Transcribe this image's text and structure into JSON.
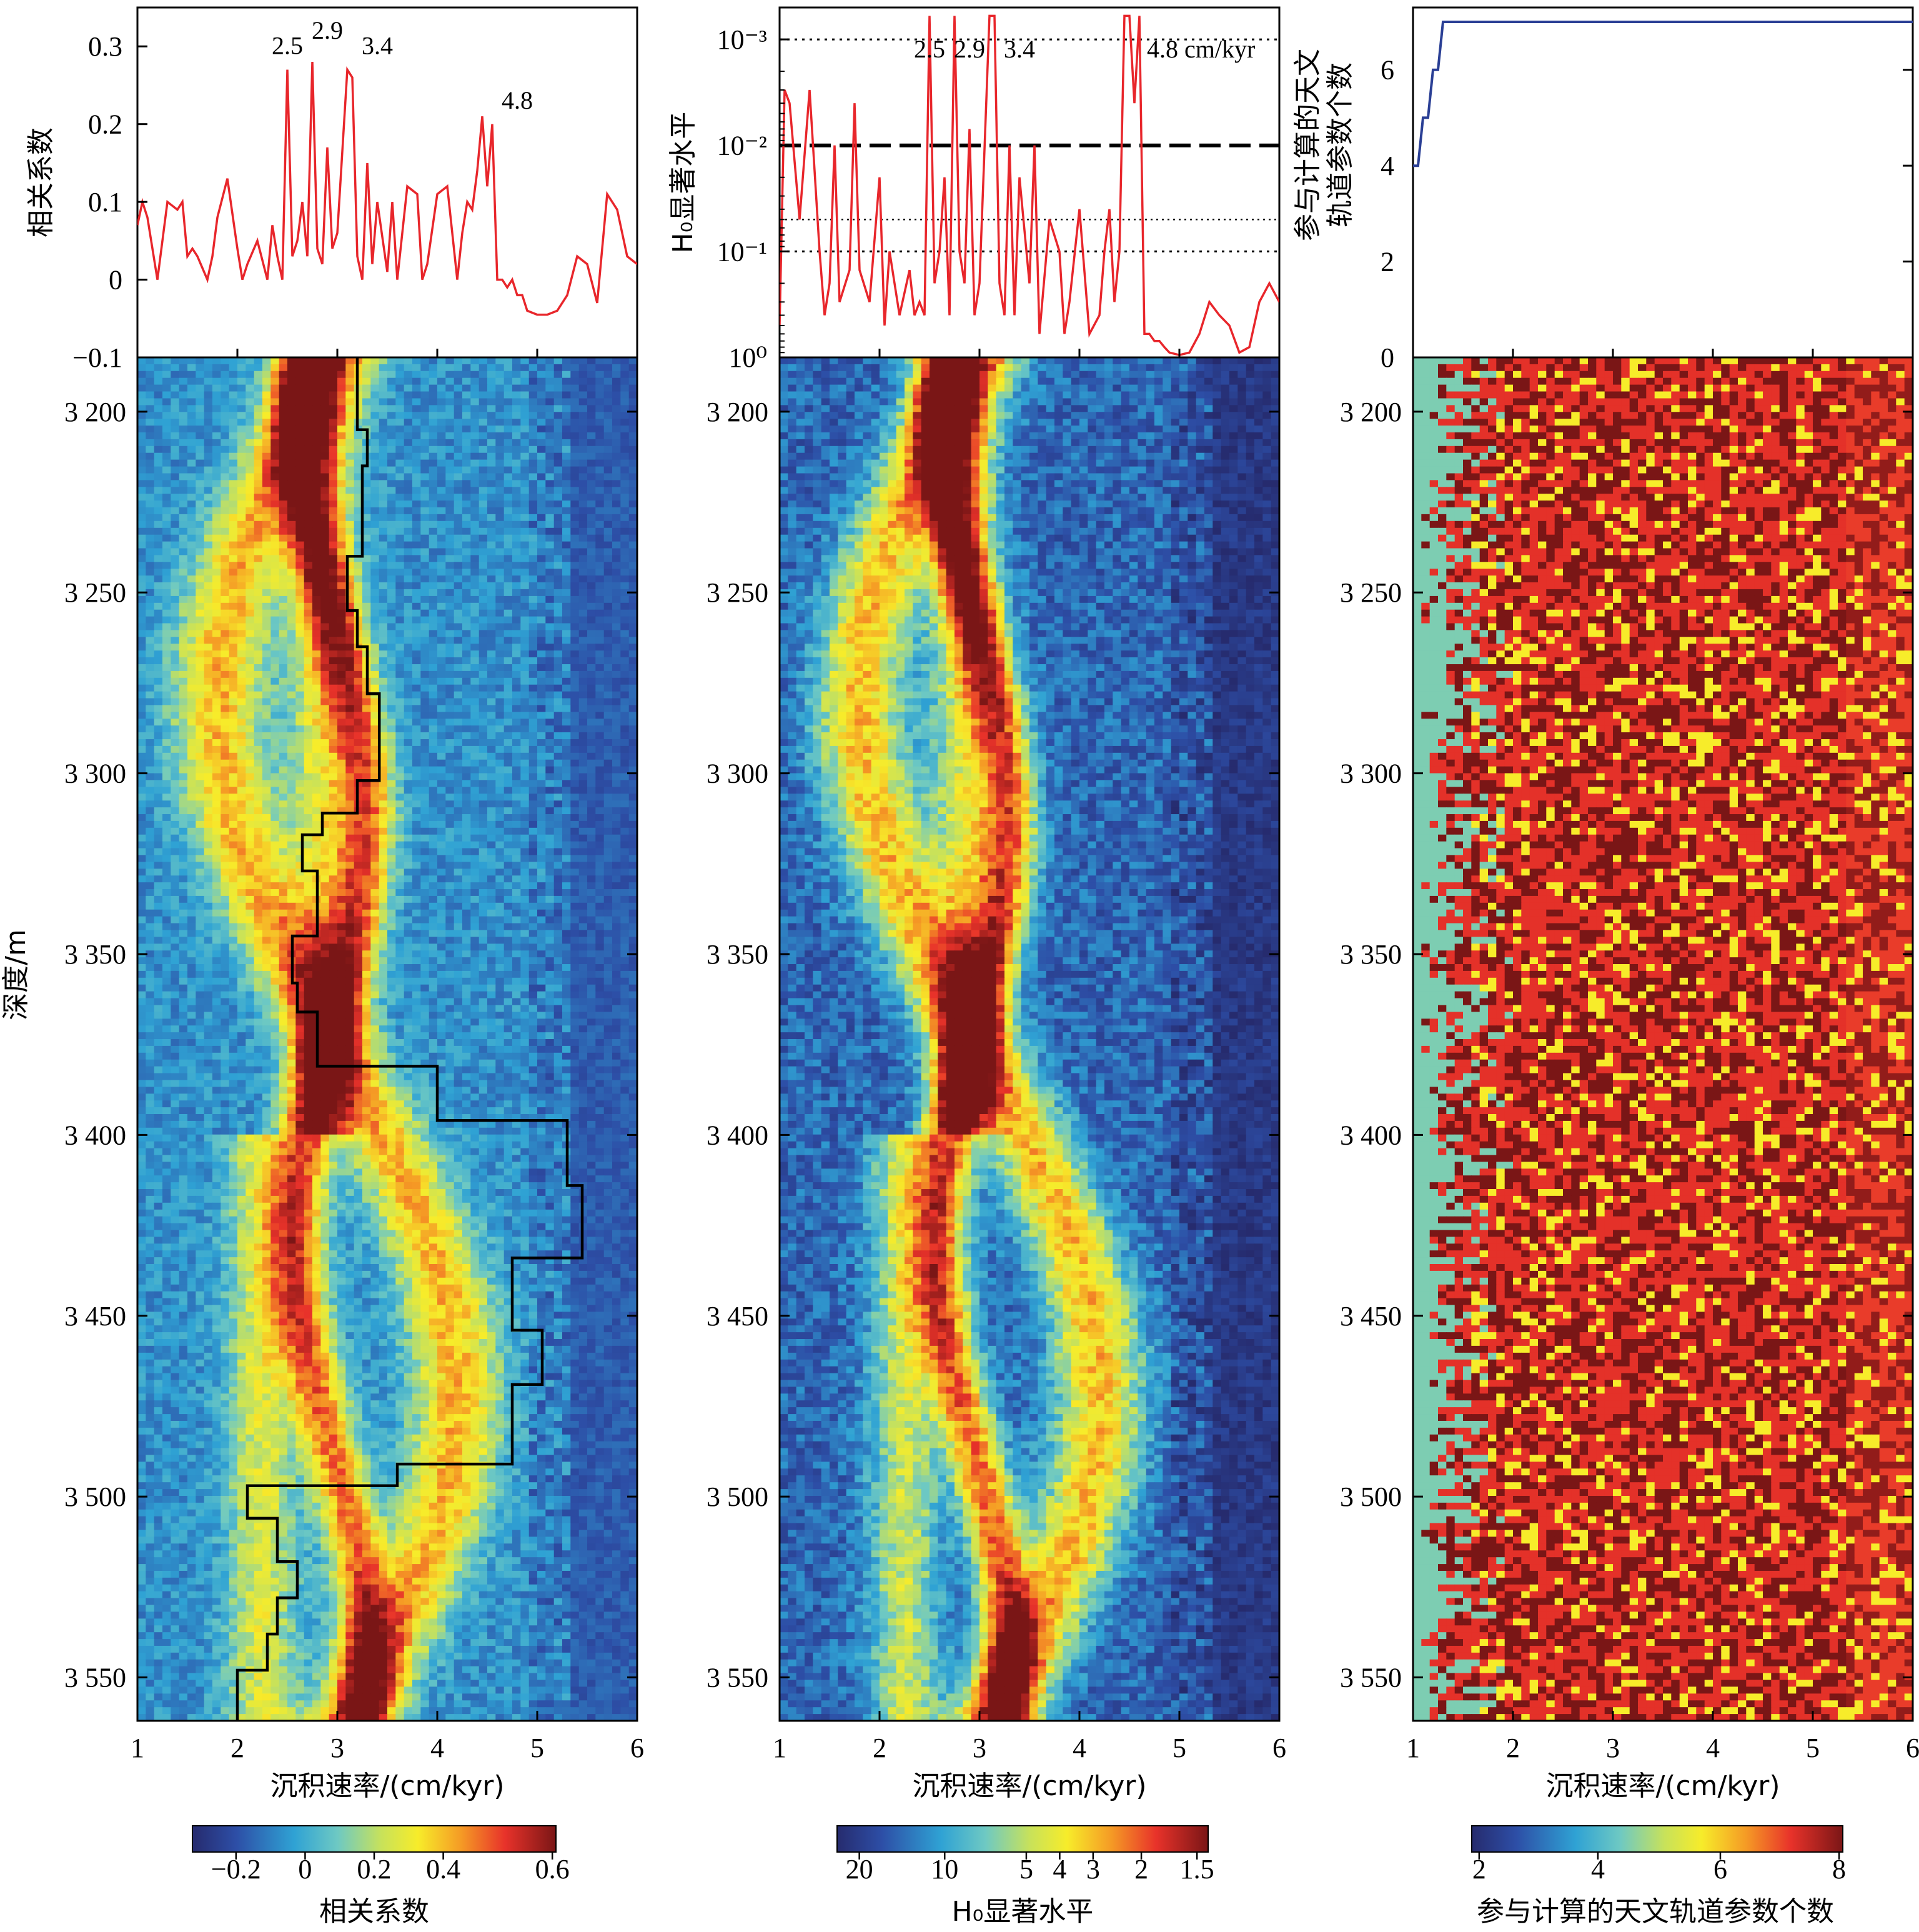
{
  "chart_data": [
    {
      "type": "line",
      "panel": "correlation",
      "ylabel": "相关系数",
      "ylim": [
        -0.1,
        0.35
      ],
      "yticks": [
        "−0.1",
        "0",
        "0.1",
        "0.2",
        "0.3"
      ],
      "xlim": [
        1,
        6
      ],
      "annotations": [
        {
          "text": "2.5",
          "x": 2.5,
          "y": 0.29
        },
        {
          "text": "2.9",
          "x": 2.9,
          "y": 0.31
        },
        {
          "text": "3.4",
          "x": 3.4,
          "y": 0.29
        },
        {
          "text": "4.8",
          "x": 4.8,
          "y": 0.22
        }
      ],
      "series": [
        {
          "color": "#e8262b",
          "x": [
            1.0,
            1.05,
            1.1,
            1.2,
            1.3,
            1.4,
            1.45,
            1.5,
            1.55,
            1.6,
            1.7,
            1.75,
            1.8,
            1.9,
            2.0,
            2.05,
            2.1,
            2.2,
            2.3,
            2.35,
            2.4,
            2.45,
            2.5,
            2.55,
            2.6,
            2.65,
            2.7,
            2.75,
            2.8,
            2.85,
            2.9,
            2.95,
            3.0,
            3.1,
            3.15,
            3.2,
            3.25,
            3.3,
            3.35,
            3.4,
            3.5,
            3.55,
            3.6,
            3.7,
            3.8,
            3.85,
            3.9,
            4.0,
            4.1,
            4.2,
            4.25,
            4.3,
            4.35,
            4.4,
            4.45,
            4.5,
            4.55,
            4.6,
            4.65,
            4.7,
            4.75,
            4.8,
            4.85,
            4.9,
            5.0,
            5.1,
            5.2,
            5.3,
            5.4,
            5.5,
            5.6,
            5.7,
            5.8,
            5.9,
            6.0
          ],
          "y": [
            0.07,
            0.1,
            0.08,
            0.0,
            0.1,
            0.09,
            0.1,
            0.03,
            0.04,
            0.03,
            0.0,
            0.03,
            0.08,
            0.13,
            0.04,
            0.0,
            0.02,
            0.05,
            0.0,
            0.07,
            0.03,
            0.0,
            0.27,
            0.03,
            0.05,
            0.1,
            0.03,
            0.28,
            0.04,
            0.02,
            0.17,
            0.04,
            0.06,
            0.27,
            0.26,
            0.03,
            0.0,
            0.15,
            0.02,
            0.1,
            0.01,
            0.1,
            0.0,
            0.12,
            0.11,
            0.0,
            0.02,
            0.11,
            0.12,
            0.0,
            0.06,
            0.1,
            0.09,
            0.14,
            0.21,
            0.12,
            0.2,
            0.0,
            0.0,
            -0.01,
            0.0,
            -0.02,
            -0.02,
            -0.04,
            -0.045,
            -0.045,
            -0.04,
            -0.02,
            0.03,
            0.02,
            -0.03,
            0.11,
            0.09,
            0.03,
            0.02
          ]
        }
      ]
    },
    {
      "type": "line",
      "panel": "h0-significance",
      "ylabel": "H₀显著水平",
      "yscale": "log-reversed",
      "ylim": [
        1,
        0.0005
      ],
      "yticks": [
        "10⁰",
        "10⁻¹",
        "10⁻²",
        "10⁻³"
      ],
      "xlim": [
        1,
        6
      ],
      "annotations": [
        {
          "text": "2.5",
          "x": 2.5
        },
        {
          "text": "2.9",
          "x": 2.9
        },
        {
          "text": "3.4",
          "x": 3.4
        },
        {
          "text": "4.8 cm/kyr",
          "x": 4.8
        }
      ],
      "reference_lines": [
        0.001,
        0.01,
        0.05,
        0.1
      ],
      "series": [
        {
          "color": "#e8262b",
          "x": [
            1.0,
            1.05,
            1.1,
            1.2,
            1.3,
            1.4,
            1.45,
            1.5,
            1.55,
            1.6,
            1.7,
            1.75,
            1.8,
            1.9,
            2.0,
            2.05,
            2.1,
            2.2,
            2.3,
            2.35,
            2.4,
            2.45,
            2.5,
            2.55,
            2.6,
            2.65,
            2.7,
            2.75,
            2.8,
            2.85,
            2.9,
            2.95,
            3.0,
            3.1,
            3.15,
            3.2,
            3.25,
            3.3,
            3.35,
            3.4,
            3.5,
            3.55,
            3.6,
            3.7,
            3.8,
            3.85,
            3.9,
            4.0,
            4.1,
            4.2,
            4.25,
            4.3,
            4.35,
            4.4,
            4.45,
            4.5,
            4.55,
            4.6,
            4.65,
            4.7,
            4.75,
            4.8,
            4.85,
            4.9,
            5.0,
            5.1,
            5.2,
            5.3,
            5.4,
            5.5,
            5.6,
            5.7,
            5.8,
            5.9,
            6.0
          ],
          "y": [
            0.5,
            0.003,
            0.004,
            0.05,
            0.003,
            0.1,
            0.4,
            0.2,
            0.01,
            0.3,
            0.15,
            0.004,
            0.15,
            0.3,
            0.02,
            0.5,
            0.1,
            0.4,
            0.15,
            0.4,
            0.3,
            0.4,
            0.0006,
            0.2,
            0.1,
            0.02,
            0.4,
            0.0006,
            0.1,
            0.2,
            0.007,
            0.4,
            0.2,
            0.0006,
            0.0006,
            0.2,
            0.4,
            0.01,
            0.4,
            0.02,
            0.2,
            0.01,
            0.6,
            0.05,
            0.1,
            0.6,
            0.3,
            0.04,
            0.6,
            0.4,
            0.1,
            0.04,
            0.3,
            0.1,
            0.0006,
            0.0006,
            0.004,
            0.0006,
            0.6,
            0.6,
            0.7,
            0.7,
            0.8,
            0.9,
            0.95,
            0.9,
            0.6,
            0.3,
            0.4,
            0.5,
            0.9,
            0.8,
            0.3,
            0.2,
            0.3
          ]
        }
      ]
    },
    {
      "type": "line",
      "panel": "parameter-count",
      "ylabel_lines": [
        "参与计算的天文",
        "轨道参数个数"
      ],
      "ylim": [
        0,
        7.3
      ],
      "yticks": [
        "0",
        "2",
        "4",
        "6"
      ],
      "xlim": [
        1,
        6
      ],
      "series": [
        {
          "color": "#2a3f95",
          "x": [
            1.0,
            1.05,
            1.1,
            1.15,
            1.2,
            1.25,
            1.3,
            1.35,
            6.0
          ],
          "y": [
            4,
            4,
            5,
            5,
            6,
            6,
            7,
            7,
            7
          ]
        }
      ]
    },
    {
      "type": "heatmap",
      "panel": "correlation-map",
      "ylabel": "深度/m",
      "xlabel": "沉积速率/(cm/kyr)",
      "xlim": [
        1,
        6
      ],
      "ylim": [
        3185,
        3562
      ],
      "xticks": [
        "1",
        "2",
        "3",
        "4",
        "5",
        "6"
      ],
      "yticks": [
        "3 200",
        "3 250",
        "3 300",
        "3 350",
        "3 400",
        "3 450",
        "3 500",
        "3 550"
      ],
      "colorbar": {
        "label": "相关系数",
        "ticks": [
          "−0.2",
          "0",
          "0.2",
          "0.4",
          "0.6"
        ]
      },
      "ridges": [
        [
          2.25,
          2.85
        ],
        [
          2.6,
          3.3
        ],
        [
          1.8,
          4.2
        ]
      ],
      "optimal_path": {
        "color": "#000000",
        "depth": [
          3185,
          3205,
          3205,
          3215,
          3215,
          3240,
          3240,
          3255,
          3255,
          3265,
          3265,
          3278,
          3278,
          3302,
          3302,
          3311,
          3311,
          3317,
          3317,
          3327,
          3327,
          3345,
          3345,
          3358,
          3358,
          3366,
          3366,
          3381,
          3381,
          3396,
          3396,
          3414,
          3414,
          3434,
          3434,
          3454,
          3454,
          3469,
          3469,
          3491,
          3491,
          3497,
          3497,
          3506,
          3506,
          3518,
          3518,
          3528,
          3528,
          3538,
          3538,
          3548,
          3548,
          3562
        ],
        "rate": [
          3.2,
          3.2,
          3.3,
          3.3,
          3.25,
          3.25,
          3.1,
          3.1,
          3.2,
          3.2,
          3.3,
          3.3,
          3.42,
          3.42,
          3.2,
          3.2,
          2.85,
          2.85,
          2.65,
          2.65,
          2.8,
          2.8,
          2.55,
          2.55,
          2.6,
          2.6,
          2.8,
          2.8,
          4.0,
          4.0,
          5.3,
          5.3,
          5.45,
          5.45,
          4.75,
          4.75,
          5.05,
          5.05,
          4.75,
          4.75,
          3.6,
          3.6,
          2.1,
          2.1,
          2.4,
          2.4,
          2.6,
          2.6,
          2.4,
          2.4,
          2.3,
          2.3,
          2.0,
          2.0
        ]
      }
    },
    {
      "type": "heatmap",
      "panel": "h0-map",
      "xlabel": "沉积速率/(cm/kyr)",
      "xlim": [
        1,
        6
      ],
      "ylim": [
        3185,
        3562
      ],
      "xticks": [
        "1",
        "2",
        "3",
        "4",
        "5",
        "6"
      ],
      "yticks": [
        "3 200",
        "3 250",
        "3 300",
        "3 350",
        "3 400",
        "3 450",
        "3 500",
        "3 550"
      ],
      "colorbar": {
        "label": "H₀显著水平",
        "ticks": [
          "20",
          "10",
          "5",
          "4",
          "3",
          "2",
          "1.5"
        ]
      },
      "ridges": [
        [
          2.25,
          2.85
        ],
        [
          2.6,
          3.3
        ],
        [
          1.8,
          4.2
        ]
      ]
    },
    {
      "type": "heatmap",
      "panel": "parameter-count-map",
      "xlabel": "沉积速率/(cm/kyr)",
      "xlim": [
        1,
        6
      ],
      "ylim": [
        3185,
        3562
      ],
      "xticks": [
        "1",
        "2",
        "3",
        "4",
        "5",
        "6"
      ],
      "yticks": [
        "3 200",
        "3 250",
        "3 300",
        "3 350",
        "3 400",
        "3 450",
        "3 500",
        "3 550"
      ],
      "colorbar": {
        "label": "参与计算的天文轨道参数个数",
        "ticks": [
          "2",
          "4",
          "6",
          "8"
        ]
      }
    }
  ],
  "colors": {
    "curve": "#e8262b",
    "count_curve": "#2a3f95",
    "jet_low": "#262b6e",
    "jet_high": "#7a1616"
  }
}
